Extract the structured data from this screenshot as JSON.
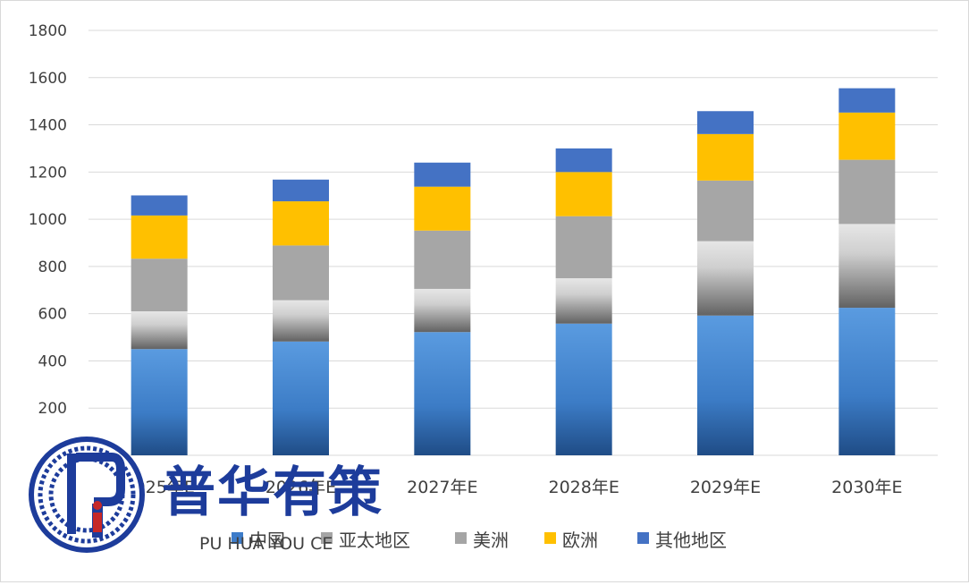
{
  "chart_data": {
    "type": "bar",
    "stacked": true,
    "categories": [
      "2025年E",
      "2026年E",
      "2027年E",
      "2028年E",
      "2029年E",
      "2030年E"
    ],
    "series": [
      {
        "name": "中国",
        "values": [
          450,
          482,
          522,
          558,
          592,
          625
        ],
        "color": "#3d7cc9"
      },
      {
        "name": "亚太地区",
        "values": [
          160,
          175,
          183,
          192,
          315,
          355
        ],
        "color": "#9a9a9a"
      },
      {
        "name": "美洲",
        "values": [
          223,
          232,
          247,
          263,
          257,
          272
        ],
        "color": "#a5a5a5"
      },
      {
        "name": "欧洲",
        "values": [
          183,
          187,
          186,
          187,
          197,
          200
        ],
        "color": "#ffc000"
      },
      {
        "name": "其他地区",
        "values": [
          85,
          92,
          102,
          100,
          97,
          103
        ],
        "color": "#4472c4"
      }
    ],
    "ylim": [
      0,
      1800
    ],
    "yticks": [
      "0",
      "200",
      "400",
      "600",
      "800",
      "1000",
      "1200",
      "1400",
      "1600",
      "1800"
    ],
    "grid": true,
    "legend_position": "bottom",
    "xlabel": "",
    "ylabel": ""
  },
  "watermark": {
    "brand": "普华有策",
    "sub": "PU HUA YOU CE"
  }
}
